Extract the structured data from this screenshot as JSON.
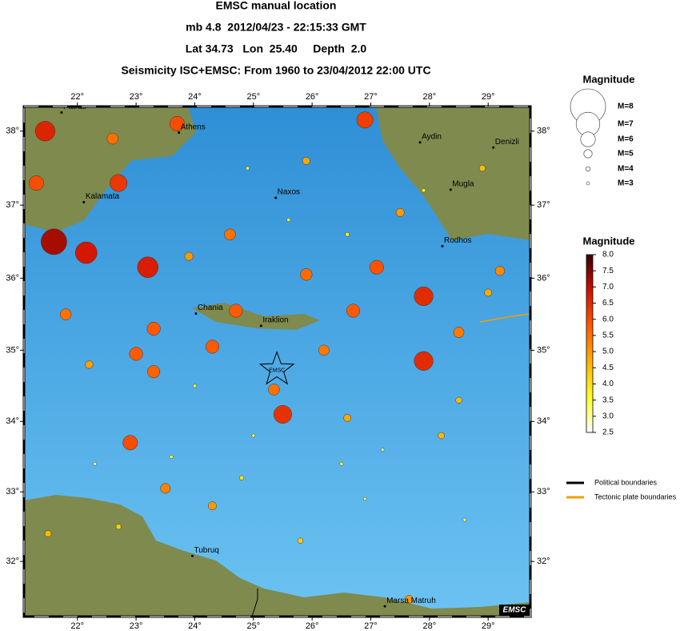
{
  "header": {
    "lines": [
      "EMSC manual location",
      "mb 4.8  2012/04/23 - 22:15:33 GMT",
      "Lat 34.73   Lon  25.40     Depth  2.0",
      "Seismicity ISC+EMSC: From 1960 to 23/04/2012 22:00 UTC"
    ]
  },
  "map": {
    "xlim": [
      21.09,
      29.72
    ],
    "ylim": [
      31.2,
      38.33
    ],
    "xticks": [
      {
        "value": 22,
        "label": "22°"
      },
      {
        "value": 23,
        "label": "23°"
      },
      {
        "value": 24,
        "label": "24°"
      },
      {
        "value": 25,
        "label": "25°"
      },
      {
        "value": 26,
        "label": "26°"
      },
      {
        "value": 27,
        "label": "27°"
      },
      {
        "value": 28,
        "label": "28°"
      },
      {
        "value": 29,
        "label": "29°"
      }
    ],
    "yticks": [
      {
        "value": 32,
        "label": "32°"
      },
      {
        "value": 33,
        "label": "33°"
      },
      {
        "value": 34,
        "label": "34°"
      },
      {
        "value": 35,
        "label": "35°"
      },
      {
        "value": 36,
        "label": "36°"
      },
      {
        "value": 37,
        "label": "37°"
      },
      {
        "value": 38,
        "label": "38°"
      }
    ],
    "cities": [
      {
        "name": "Patras",
        "lon": 21.73,
        "lat": 38.25
      },
      {
        "name": "Athens",
        "lon": 23.73,
        "lat": 37.98
      },
      {
        "name": "Kalamata",
        "lon": 22.11,
        "lat": 37.04
      },
      {
        "name": "Naxos",
        "lon": 25.38,
        "lat": 37.1
      },
      {
        "name": "Aydin",
        "lon": 27.84,
        "lat": 37.85
      },
      {
        "name": "Denizli",
        "lon": 29.09,
        "lat": 37.78
      },
      {
        "name": "Mugla",
        "lon": 28.36,
        "lat": 37.21
      },
      {
        "name": "Rodhos",
        "lon": 28.22,
        "lat": 36.44
      },
      {
        "name": "Chania",
        "lon": 24.02,
        "lat": 35.51
      },
      {
        "name": "Iraklion",
        "lon": 25.13,
        "lat": 35.34
      },
      {
        "name": "Tubruq",
        "lon": 23.96,
        "lat": 32.08
      },
      {
        "name": "Marsa Matruh",
        "lon": 27.24,
        "lat": 31.35
      }
    ],
    "epicenter": {
      "lon": 25.4,
      "lat": 34.73,
      "label": "EMSC"
    },
    "events": {
      "lon": [
        21.6,
        22.15,
        21.45,
        23.2,
        22.7,
        27.9,
        27.9,
        25.5,
        22.9,
        21.3,
        23.7,
        26.9,
        24.7,
        23.3,
        23.0,
        23.3,
        24.3,
        25.9,
        27.1,
        26.7,
        28.5,
        29.2,
        25.35,
        23.5,
        24.3,
        27.65,
        26.6,
        22.2,
        28.2,
        25.8,
        22.7,
        24.8,
        28.5,
        21.5,
        22.6,
        25.9,
        27.5,
        28.9,
        23.9,
        24.6,
        26.2,
        21.8,
        29.0,
        24.0,
        25.0,
        26.5,
        27.2,
        23.6,
        28.6,
        26.9,
        22.3,
        25.6,
        24.9,
        26.6,
        27.9
      ],
      "lat": [
        36.5,
        36.35,
        38.0,
        36.15,
        37.3,
        35.75,
        34.85,
        34.1,
        33.7,
        37.3,
        38.1,
        38.15,
        35.55,
        35.3,
        34.95,
        34.7,
        35.05,
        36.05,
        36.15,
        35.55,
        35.25,
        36.1,
        34.45,
        33.05,
        32.8,
        31.45,
        34.05,
        34.8,
        33.8,
        32.3,
        32.5,
        33.2,
        34.3,
        32.4,
        37.9,
        37.6,
        36.9,
        37.5,
        36.3,
        36.6,
        35.0,
        35.5,
        35.8,
        34.5,
        33.8,
        33.4,
        33.6,
        33.5,
        32.6,
        32.9,
        33.4,
        36.8,
        37.5,
        36.6,
        37.2
      ],
      "mag": [
        7.2,
        6.8,
        6.6,
        6.7,
        6.3,
        6.5,
        6.5,
        6.4,
        6.0,
        6.0,
        6.0,
        6.2,
        5.8,
        5.8,
        5.8,
        5.7,
        5.8,
        5.6,
        5.9,
        5.8,
        5.4,
        5.2,
        5.5,
        5.3,
        5.0,
        5.0,
        4.8,
        4.9,
        4.6,
        4.3,
        4.2,
        4.0,
        4.5,
        4.6,
        5.5,
        4.8,
        5.0,
        4.5,
        5.0,
        5.5,
        5.4,
        5.5,
        4.8,
        3.5,
        3.3,
        3.4,
        3.0,
        3.5,
        3.2,
        3.0,
        3.1,
        3.5,
        3.2,
        3.8,
        3.6
      ]
    },
    "land_color": "#7f8a4e",
    "sea_colors": [
      "#2f8fd6",
      "#6cc3f2"
    ]
  },
  "size_legend": {
    "title": "Magnitude",
    "entries": [
      {
        "value": 8,
        "label": "M=8"
      },
      {
        "value": 7,
        "label": "M=7"
      },
      {
        "value": 6,
        "label": "M=6"
      },
      {
        "value": 5,
        "label": "M=5"
      },
      {
        "value": 4,
        "label": "M=4"
      },
      {
        "value": 3,
        "label": "M=3"
      }
    ]
  },
  "colorbar": {
    "title": "Magnitude",
    "clim": [
      2.5,
      8.0
    ],
    "colors": [
      "#ffffff",
      "#ffff20",
      "#ffb000",
      "#ff5a00",
      "#d01000",
      "#3a0000"
    ],
    "ticks": [
      {
        "value": 8,
        "label": "8.0"
      },
      7.5,
      {
        "value": 7,
        "label": "7.0"
      },
      6.5,
      {
        "value": 6,
        "label": "6.0"
      },
      5.5,
      {
        "value": 5,
        "label": "5.0"
      },
      4.5,
      {
        "value": 4,
        "label": "4.0"
      },
      3.5,
      {
        "value": 3,
        "label": "3.0"
      },
      2.5
    ]
  },
  "line_legend": [
    {
      "label": "Political boundaries",
      "color": "#000000"
    },
    {
      "label": "Tectonic plate boundaries",
      "color": "#f0a000"
    }
  ],
  "logo": "EMSC"
}
